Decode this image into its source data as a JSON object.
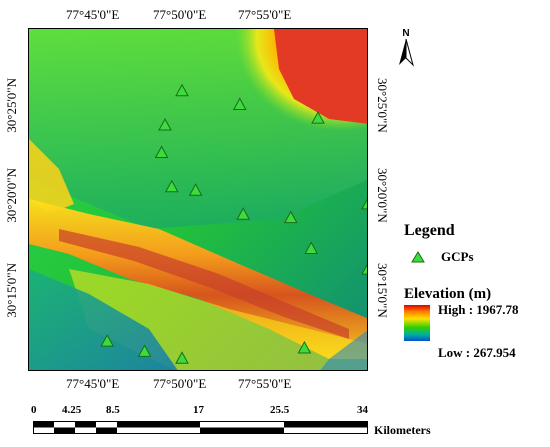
{
  "map": {
    "top_labels": [
      "77°45'0\"E",
      "77°50'0\"E",
      "77°55'0\"E"
    ],
    "bottom_labels": [
      "77°45'0\"E",
      "77°50'0\"E",
      "77°55'0\"E"
    ],
    "left_labels": [
      "30°25'0\"N",
      "30°20'0\"N",
      "30°15'0\"N"
    ],
    "right_labels": [
      "30°25'0\"N",
      "30°20'0\"N",
      "30°15'0\"N"
    ],
    "gcp_points": [
      [
        0.62,
        0.22
      ],
      [
        0.4,
        0.28
      ],
      [
        0.85,
        0.26
      ],
      [
        0.45,
        0.18
      ],
      [
        0.39,
        0.36
      ],
      [
        0.42,
        0.46
      ],
      [
        0.49,
        0.47
      ],
      [
        0.63,
        0.54
      ],
      [
        0.77,
        0.55
      ],
      [
        1.0,
        0.51
      ],
      [
        0.83,
        0.64
      ],
      [
        1.0,
        0.7
      ],
      [
        0.23,
        0.91
      ],
      [
        0.34,
        0.94
      ],
      [
        0.81,
        0.93
      ],
      [
        0.45,
        0.96
      ]
    ]
  },
  "north_arrow": {
    "label": "N"
  },
  "legend": {
    "title": "Legend",
    "gcp_label": "GCPs",
    "elevation_title": "Elevation (m)",
    "high_label": "High : 1967.78",
    "low_label": "Low : 267.954",
    "colors": {
      "gcp_fill": "#3ddc3d",
      "gcp_stroke": "#1a6b1a"
    }
  },
  "scalebar": {
    "ticks": [
      "0",
      "4.25",
      "8.5",
      "17",
      "25.5",
      "34"
    ],
    "unit": "Kilometers"
  }
}
